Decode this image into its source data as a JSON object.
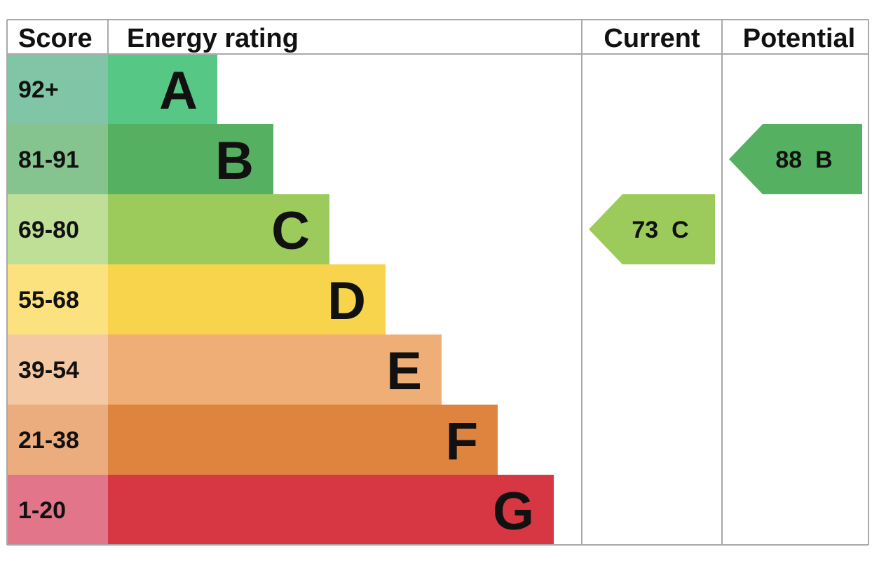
{
  "chart_data": {
    "type": "table",
    "headers": {
      "score": "Score",
      "rating": "Energy rating",
      "current": "Current",
      "potential": "Potential"
    },
    "bands": [
      {
        "letter": "A",
        "range": "92+",
        "bar_color": "#57c785",
        "score_bg": "#80c6a6"
      },
      {
        "letter": "B",
        "range": "81-91",
        "bar_color": "#56b062",
        "score_bg": "#85c38f"
      },
      {
        "letter": "C",
        "range": "69-80",
        "bar_color": "#9ccb5c",
        "score_bg": "#bfdf97"
      },
      {
        "letter": "D",
        "range": "55-68",
        "bar_color": "#f7d44b",
        "score_bg": "#fbe27e"
      },
      {
        "letter": "E",
        "range": "39-54",
        "bar_color": "#efae75",
        "score_bg": "#f4c8a2"
      },
      {
        "letter": "F",
        "range": "21-38",
        "bar_color": "#df843e",
        "score_bg": "#ebad7d"
      },
      {
        "letter": "G",
        "range": "1-20",
        "bar_color": "#d73643",
        "score_bg": "#e27589"
      }
    ],
    "current": {
      "score": 73,
      "band": "C",
      "label": "73  C",
      "color": "#9ccb5c"
    },
    "potential": {
      "score": 88,
      "band": "B",
      "label": "88  B",
      "color": "#56b062"
    }
  }
}
